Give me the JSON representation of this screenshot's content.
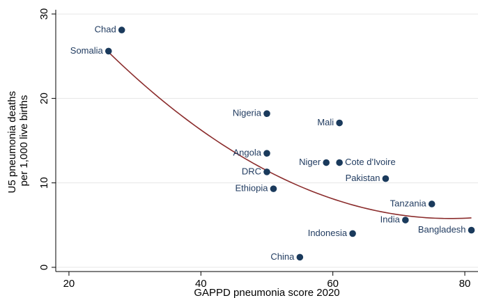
{
  "chart_data": {
    "type": "scatter",
    "title": "",
    "xlabel": "GAPPD pneumonia score 2020",
    "ylabel_lines": [
      "U5 pneumonia deaths",
      "per 1,000 live births"
    ],
    "xlim": [
      18,
      82
    ],
    "ylim": [
      -0.5,
      30.5
    ],
    "x_ticks": [
      20,
      40,
      60,
      80
    ],
    "y_ticks": [
      0,
      10,
      20,
      30
    ],
    "grid": "horizontal",
    "points": [
      {
        "label": "Chad",
        "x": 28,
        "y": 28.1,
        "label_side": "left"
      },
      {
        "label": "Somalia",
        "x": 26,
        "y": 25.6,
        "label_side": "left"
      },
      {
        "label": "Nigeria",
        "x": 50,
        "y": 18.2,
        "label_side": "left"
      },
      {
        "label": "Mali",
        "x": 61,
        "y": 17.1,
        "label_side": "left"
      },
      {
        "label": "Angola",
        "x": 50,
        "y": 13.5,
        "label_side": "left"
      },
      {
        "label": "Niger",
        "x": 59,
        "y": 12.4,
        "label_side": "left"
      },
      {
        "label": "Cote d'Ivoire",
        "x": 61,
        "y": 12.4,
        "label_side": "right"
      },
      {
        "label": "DRC",
        "x": 50,
        "y": 11.3,
        "label_side": "left"
      },
      {
        "label": "Pakistan",
        "x": 68,
        "y": 10.5,
        "label_side": "left"
      },
      {
        "label": "Ethiopia",
        "x": 51,
        "y": 9.3,
        "label_side": "left"
      },
      {
        "label": "Tanzania",
        "x": 75,
        "y": 7.5,
        "label_side": "left"
      },
      {
        "label": "India",
        "x": 71,
        "y": 5.6,
        "label_side": "left"
      },
      {
        "label": "Bangladesh",
        "x": 81,
        "y": 4.4,
        "label_side": "left"
      },
      {
        "label": "Indonesia",
        "x": 63,
        "y": 4.0,
        "label_side": "left"
      },
      {
        "label": "China",
        "x": 55,
        "y": 1.2,
        "label_side": "left"
      }
    ],
    "fit_curve": {
      "type": "quadratic",
      "coefficients": [
        50.22,
        -1.1425,
        0.007343
      ],
      "x_range": [
        26,
        81
      ]
    },
    "colors": {
      "marker": "#1a3a5c",
      "label": "#1f3a5f",
      "fit": "#8b2c2c",
      "axis": "#000000",
      "grid": "#e6e6e6"
    }
  }
}
